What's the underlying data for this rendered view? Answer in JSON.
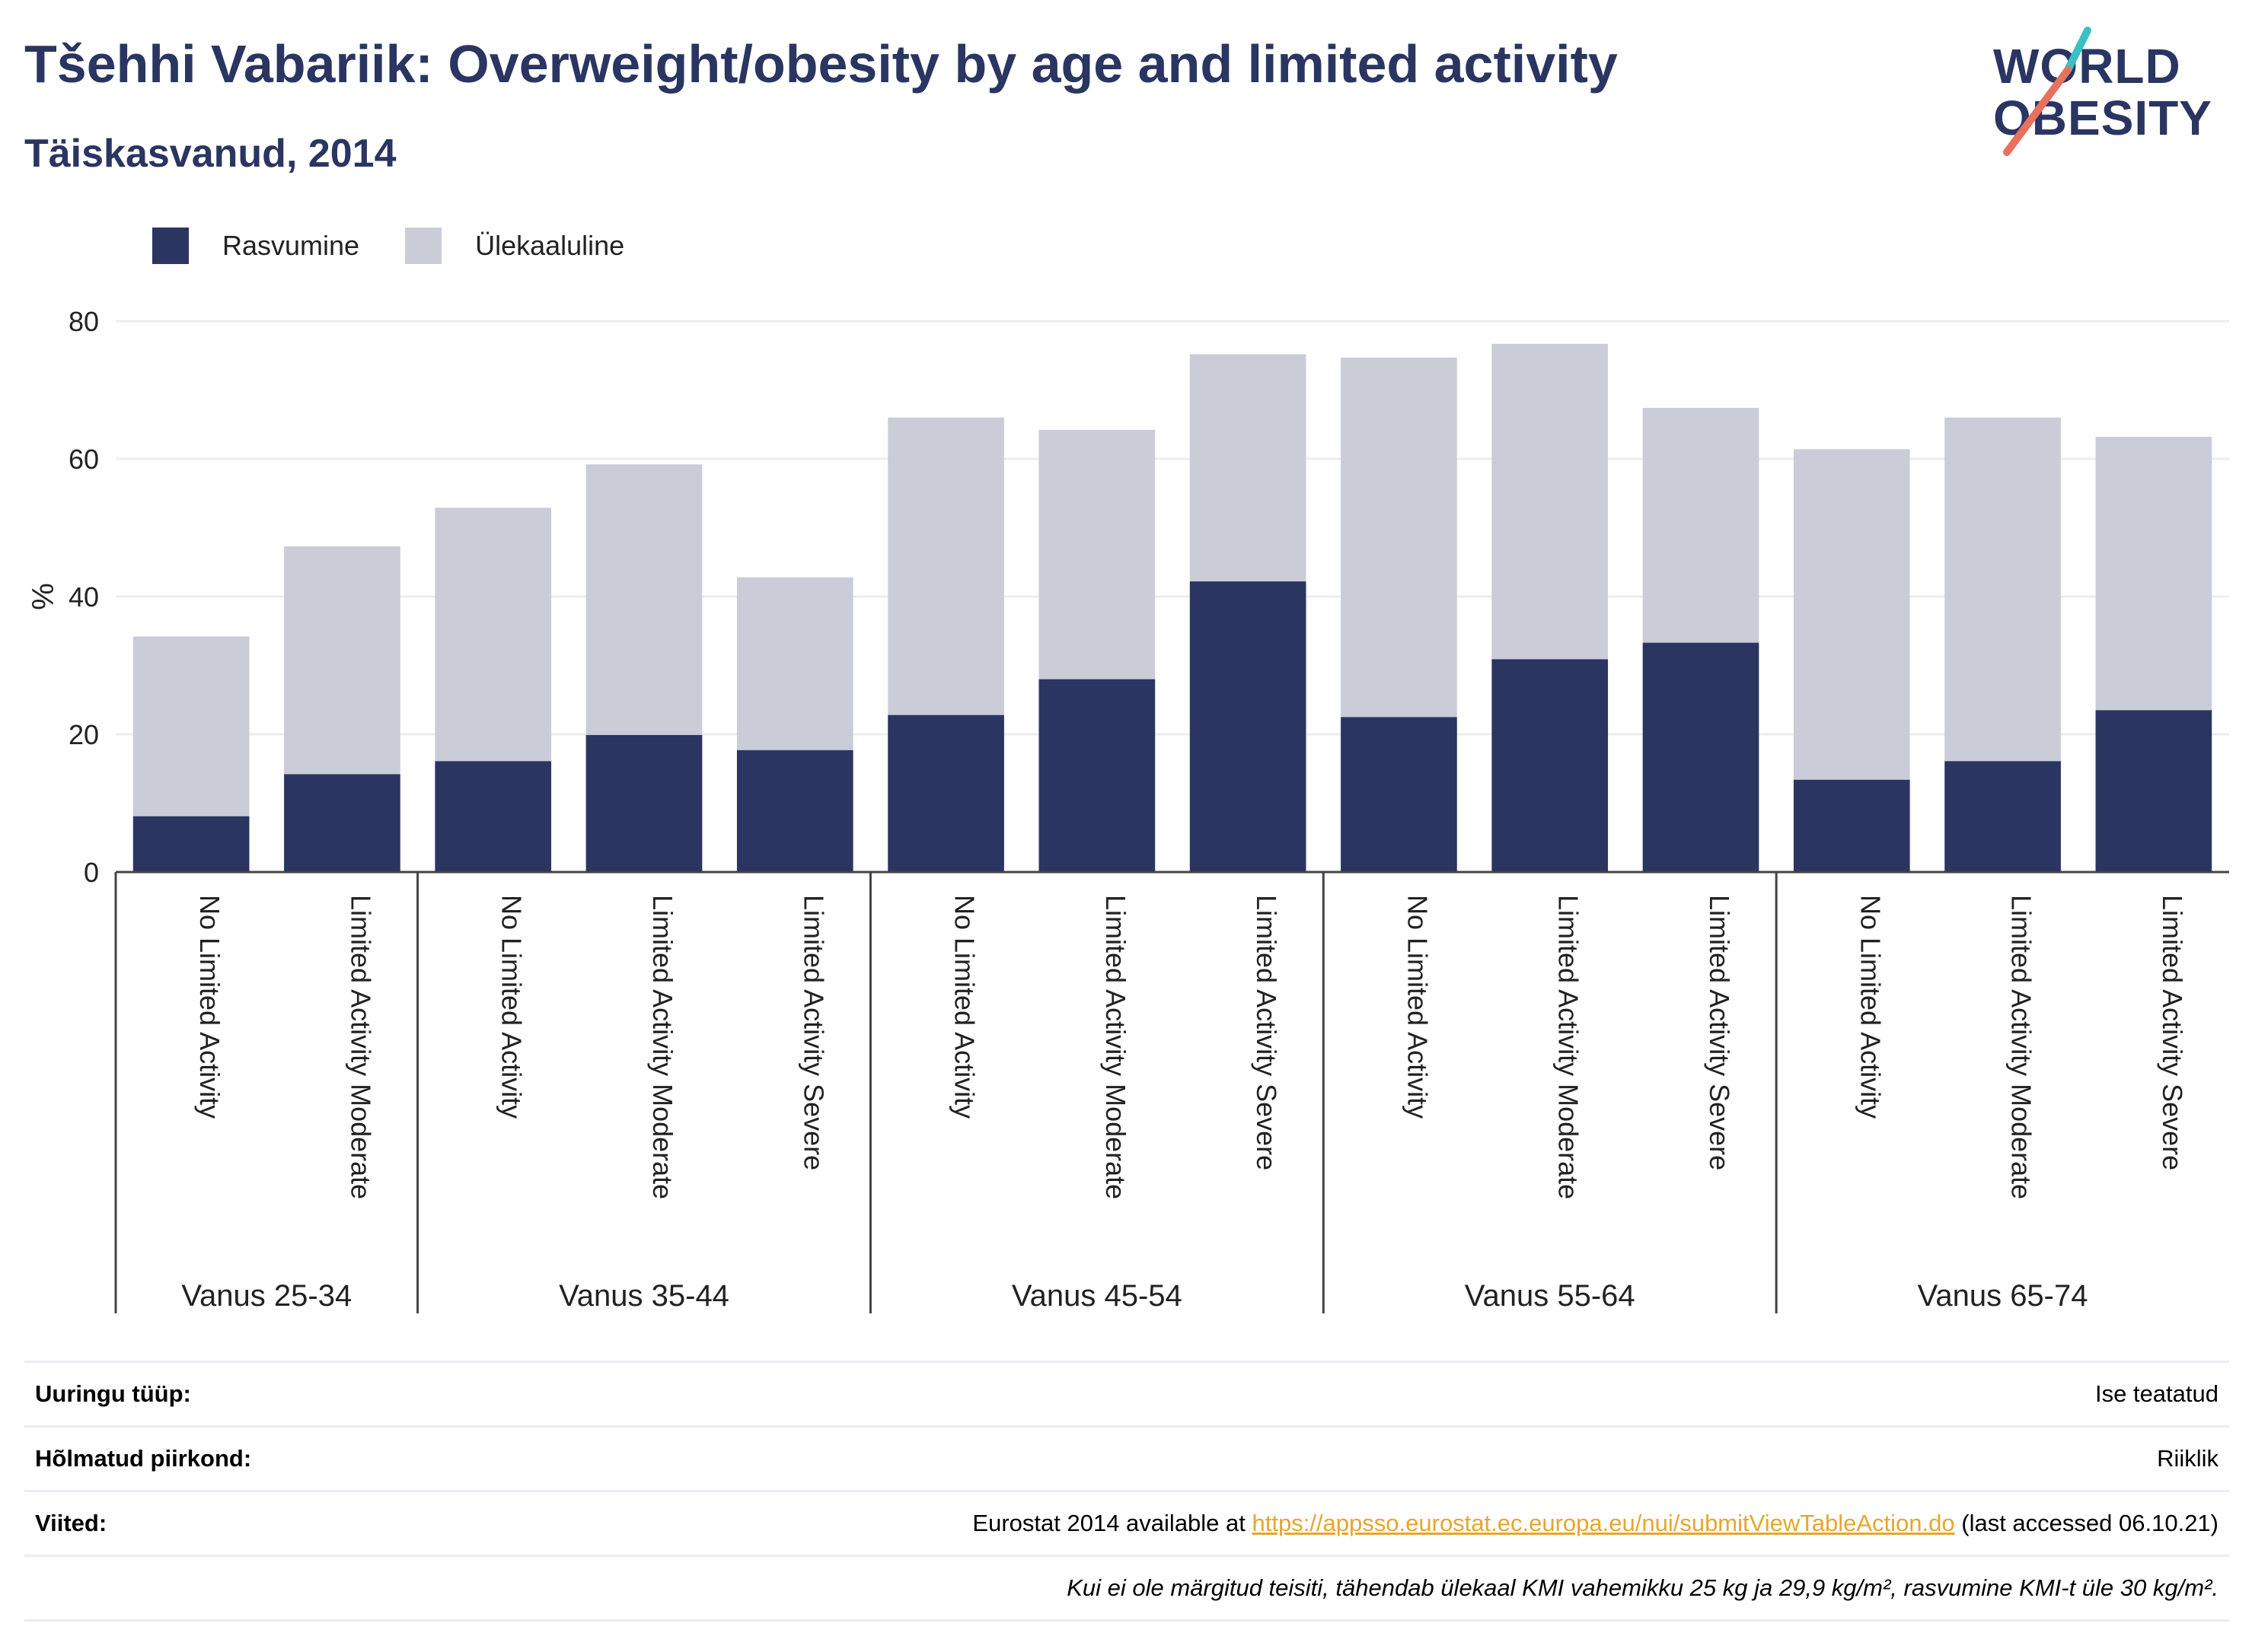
{
  "header": {
    "title": "Tšehhi Vabariik: Overweight/obesity by age and limited activity",
    "subtitle": "Täiskasvanud, 2014"
  },
  "logo": {
    "line1": "WORLD",
    "line2": "OBESITY"
  },
  "colors": {
    "obesity": "#2a3561",
    "overweight": "#cacdd8",
    "text": "#2a3561",
    "link": "#e7a62c"
  },
  "chart_data": {
    "type": "bar",
    "stacked": true,
    "ylabel": "%",
    "ylim": [
      0,
      80
    ],
    "yticks": [
      0,
      20,
      40,
      60,
      80
    ],
    "grid": true,
    "legend_position": "top-left",
    "groups": [
      {
        "label": "Vanus 25-34",
        "categories": [
          "No Limited Activity",
          "Limited Activity Moderate"
        ]
      },
      {
        "label": "Vanus 35-44",
        "categories": [
          "No Limited Activity",
          "Limited Activity Moderate",
          "Limited Activity Severe"
        ]
      },
      {
        "label": "Vanus 45-54",
        "categories": [
          "No Limited Activity",
          "Limited Activity Moderate",
          "Limited Activity Severe"
        ]
      },
      {
        "label": "Vanus 55-64",
        "categories": [
          "No Limited Activity",
          "Limited Activity Moderate",
          "Limited Activity Severe"
        ]
      },
      {
        "label": "Vanus 65-74",
        "categories": [
          "No Limited Activity",
          "Limited Activity Moderate",
          "Limited Activity Severe"
        ]
      }
    ],
    "series": [
      {
        "name": "Rasvumine",
        "values": [
          8.1,
          14.2,
          16.1,
          19.9,
          17.7,
          22.8,
          28.0,
          42.2,
          22.5,
          30.9,
          33.3,
          13.4,
          16.1,
          23.5
        ]
      },
      {
        "name": "Ülekaaluline",
        "values": [
          26.1,
          33.1,
          36.8,
          39.3,
          25.1,
          43.2,
          36.2,
          33.0,
          52.2,
          45.8,
          34.1,
          48.0,
          49.9,
          39.7
        ]
      }
    ]
  },
  "footer": {
    "survey_type": {
      "label": "Uuringu tüüp:",
      "value": "Ise teatatud"
    },
    "area": {
      "label": "Hõlmatud piirkond:",
      "value": "Riiklik"
    },
    "references": {
      "label": "Viited:",
      "prefix": "Eurostat 2014 available at ",
      "link": "https://appsso.eurostat.ec.europa.eu/nui/submitViewTableAction.do",
      "suffix": " (last accessed 06.10.21)"
    },
    "note": "Kui ei ole märgitud teisiti, tähendab ülekaal KMI vahemikku 25 kg ja 29,9 kg/m², rasvumine KMI-t üle 30 kg/m²."
  }
}
